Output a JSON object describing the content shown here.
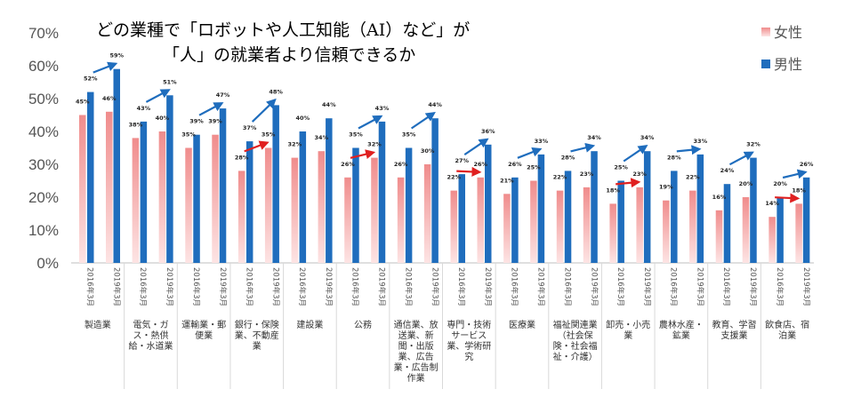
{
  "chart_data": {
    "type": "bar",
    "title_lines": [
      "どの業種で「ロボットや人工知能（AI）など」が",
      "「人」の就業者より信頼できるか"
    ],
    "ylim": [
      0,
      70
    ],
    "yticks": [
      0,
      10,
      20,
      30,
      40,
      50,
      60,
      70
    ],
    "ytick_labels": [
      "0%",
      "10%",
      "20%",
      "30%",
      "40%",
      "50%",
      "60%",
      "70%"
    ],
    "x_labels": [
      "2016年3月",
      "2019年3月"
    ],
    "legend": {
      "placement": "top-right"
    },
    "series": [
      {
        "name": "女性",
        "color": "#f08c8c",
        "label_texts": {
          "f2016": [
            "45%",
            "38%",
            "35%",
            "28%",
            "32%",
            "26%",
            "26%",
            "22%",
            "21%",
            "22%",
            "18%",
            "19%",
            "16%",
            "14%"
          ],
          "f2019": [
            "46%",
            "40%",
            "39%",
            "35%",
            "34%",
            "32%",
            "30%",
            "26%",
            "25%",
            "23%",
            "23%",
            "22%",
            "20%",
            "18%"
          ]
        }
      },
      {
        "name": "男性",
        "color": "#1f6dbd",
        "label_texts": {
          "m2016": [
            "52%",
            "43%",
            "39%",
            "37%",
            "40%",
            "35%",
            "35%",
            "27%",
            "26%",
            "28%",
            "25%",
            "28%",
            "24%",
            "20%"
          ],
          "m2019": [
            "59%",
            "51%",
            "47%",
            "48%",
            "44%",
            "43%",
            "44%",
            "36%",
            "33%",
            "34%",
            "34%",
            "33%",
            "32%",
            "26%"
          ]
        }
      }
    ],
    "categories": [
      {
        "lines": [
          "製造業"
        ],
        "f2016": 45,
        "m2016": 52,
        "f2019": 46,
        "m2019": 59,
        "arrows": [
          "m"
        ]
      },
      {
        "lines": [
          "電気・ガ",
          "ス・熱供",
          "給・水道業"
        ],
        "f2016": 38,
        "m2016": 43,
        "f2019": 40,
        "m2019": 51,
        "arrows": [
          "m"
        ]
      },
      {
        "lines": [
          "運輸業・郵",
          "便業"
        ],
        "f2016": 35,
        "m2016": 39,
        "f2019": 39,
        "m2019": 47,
        "arrows": [
          "m"
        ]
      },
      {
        "lines": [
          "銀行・保険",
          "業、不動産",
          "業"
        ],
        "f2016": 28,
        "m2016": 37,
        "f2019": 35,
        "m2019": 48,
        "arrows": [
          "m",
          "f"
        ]
      },
      {
        "lines": [
          "建設業"
        ],
        "f2016": 32,
        "m2016": 40,
        "f2019": 34,
        "m2019": 44,
        "arrows": []
      },
      {
        "lines": [
          "公務"
        ],
        "f2016": 26,
        "m2016": 35,
        "f2019": 32,
        "m2019": 43,
        "arrows": [
          "m",
          "f"
        ]
      },
      {
        "lines": [
          "通信業、放",
          "送業、新",
          "聞・出版",
          "業、広告",
          "業・広告制",
          "作業"
        ],
        "f2016": 26,
        "m2016": 35,
        "f2019": 30,
        "m2019": 44,
        "arrows": [
          "m"
        ]
      },
      {
        "lines": [
          "専門・技術",
          "サービス",
          "業、学術研",
          "究"
        ],
        "f2016": 22,
        "m2016": 27,
        "f2019": 26,
        "m2019": 36,
        "arrows": [
          "m",
          "f"
        ]
      },
      {
        "lines": [
          "医療業"
        ],
        "f2016": 21,
        "m2016": 26,
        "f2019": 25,
        "m2019": 33,
        "arrows": [
          "m"
        ]
      },
      {
        "lines": [
          "福祉関連業",
          "（社会保",
          "険・社会福",
          "祉・介護）"
        ],
        "f2016": 22,
        "m2016": 28,
        "f2019": 23,
        "m2019": 34,
        "arrows": [
          "m"
        ]
      },
      {
        "lines": [
          "卸売・小売",
          "業"
        ],
        "f2016": 18,
        "m2016": 25,
        "f2019": 23,
        "m2019": 34,
        "arrows": [
          "m",
          "f"
        ]
      },
      {
        "lines": [
          "農林水産・",
          "鉱業"
        ],
        "f2016": 19,
        "m2016": 28,
        "f2019": 22,
        "m2019": 33,
        "arrows": [
          "m"
        ]
      },
      {
        "lines": [
          "教育、学習",
          "支援業"
        ],
        "f2016": 16,
        "m2016": 24,
        "f2019": 20,
        "m2019": 32,
        "arrows": [
          "m"
        ]
      },
      {
        "lines": [
          "飲食店、宿",
          "泊業"
        ],
        "f2016": 14,
        "m2016": 20,
        "f2019": 18,
        "m2019": 26,
        "arrows": [
          "m",
          "f"
        ]
      }
    ],
    "arrow_colors": {
      "m": "#1f6dbd",
      "f": "#e02020"
    },
    "grid": false
  }
}
